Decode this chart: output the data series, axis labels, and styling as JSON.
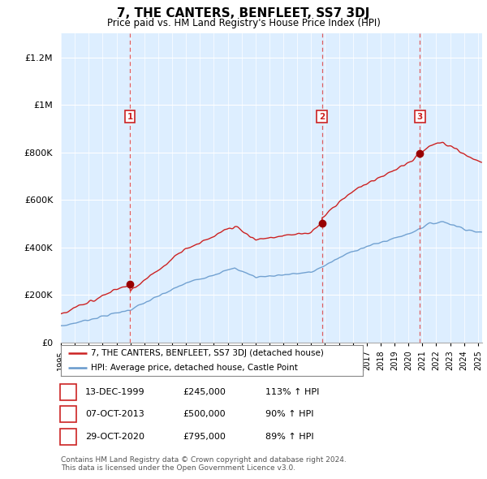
{
  "title": "7, THE CANTERS, BENFLEET, SS7 3DJ",
  "subtitle": "Price paid vs. HM Land Registry's House Price Index (HPI)",
  "ylabel_ticks": [
    "£0",
    "£200K",
    "£400K",
    "£600K",
    "£800K",
    "£1M",
    "£1.2M"
  ],
  "ytick_values": [
    0,
    200000,
    400000,
    600000,
    800000,
    1000000,
    1200000
  ],
  "ylim": [
    0,
    1300000
  ],
  "xlim_start": 1995.0,
  "xlim_end": 2025.3,
  "sale_dates": [
    1999.96,
    2013.77,
    2020.83
  ],
  "sale_prices": [
    245000,
    500000,
    795000
  ],
  "sale_labels": [
    "1",
    "2",
    "3"
  ],
  "legend_sale_label": "7, THE CANTERS, BENFLEET, SS7 3DJ (detached house)",
  "legend_hpi_label": "HPI: Average price, detached house, Castle Point",
  "table_rows": [
    [
      "1",
      "13-DEC-1999",
      "£245,000",
      "113% ↑ HPI"
    ],
    [
      "2",
      "07-OCT-2013",
      "£500,000",
      "90% ↑ HPI"
    ],
    [
      "3",
      "29-OCT-2020",
      "£795,000",
      "89% ↑ HPI"
    ]
  ],
  "footnote": "Contains HM Land Registry data © Crown copyright and database right 2024.\nThis data is licensed under the Open Government Licence v3.0.",
  "sale_line_color": "#cc2222",
  "hpi_line_color": "#6699cc",
  "sale_marker_color": "#990000",
  "grid_color": "#cccccc",
  "chart_bg_color": "#ddeeff",
  "background_color": "#ffffff",
  "dashed_line_color": "#dd4444"
}
